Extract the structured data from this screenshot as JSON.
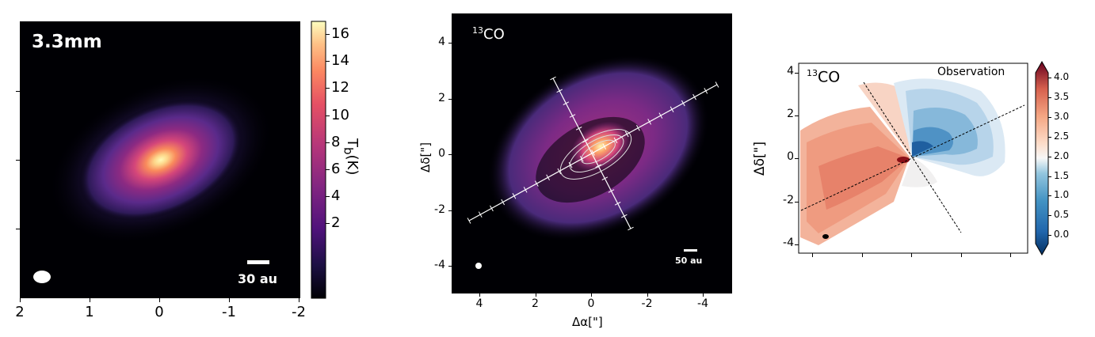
{
  "panel1": {
    "band_label": "3.3mm",
    "scale_bar_label": "30 au",
    "x_ticks": [
      "2",
      "1",
      "0",
      "-1",
      "-2"
    ],
    "colorbar": {
      "label": "T",
      "label_sub": "b",
      "label_unit": "(K)",
      "ticks": [
        "16",
        "14",
        "12",
        "10",
        "8",
        "6",
        "4",
        "2"
      ],
      "colormap": "magma"
    }
  },
  "panel2": {
    "line_label_sup": "13",
    "line_label": "CO",
    "scale_bar_label": "50 au",
    "x_ticks": [
      "4",
      "2",
      "0",
      "-2",
      "-4"
    ],
    "y_ticks": [
      "4",
      "2",
      "0",
      "-2",
      "-4"
    ],
    "xlabel": "Δα[\"]",
    "ylabel": "Δδ[\"]"
  },
  "panel3": {
    "line_label_sup": "13",
    "line_label": "CO",
    "corner_label": "Observation",
    "y_ticks": [
      "4",
      "2",
      "0",
      "-2",
      "-4"
    ],
    "ylabel": "Δδ[\"]",
    "colorbar": {
      "ticks": [
        "4.0",
        "3.5",
        "3.0",
        "2.5",
        "2.0",
        "1.5",
        "1.0",
        "0.5",
        "0.0"
      ],
      "colormap": "RdBu_r"
    }
  }
}
